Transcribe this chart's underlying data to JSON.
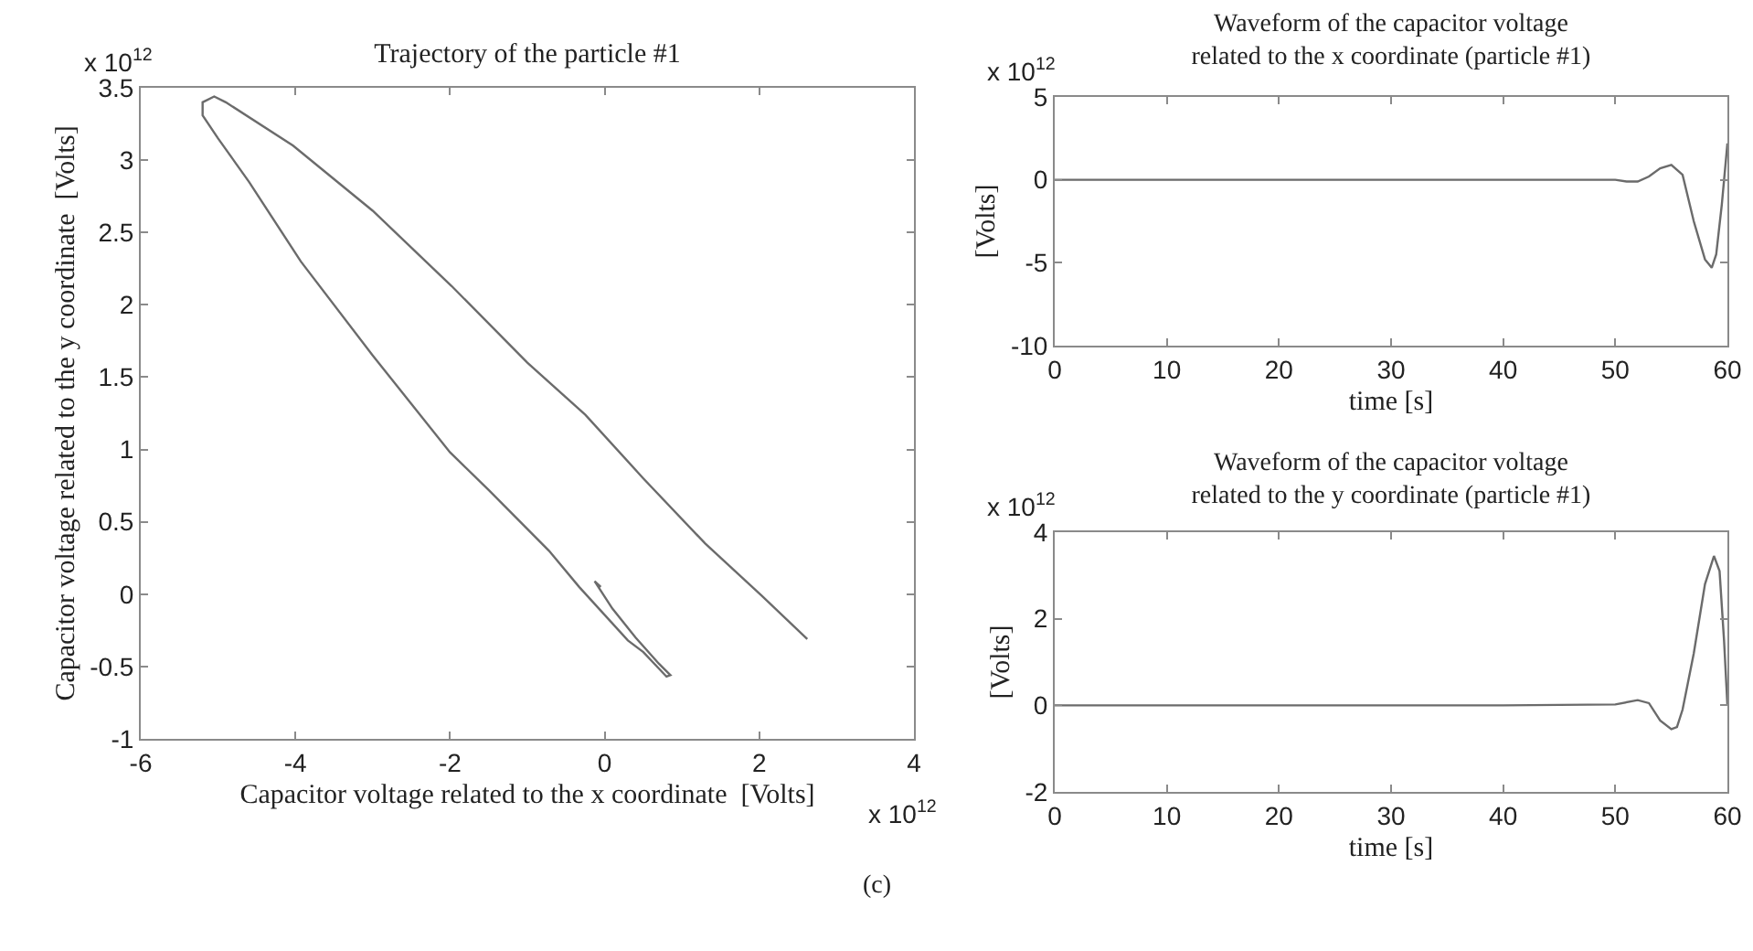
{
  "chart_data": [
    {
      "type": "line",
      "title": "Trajectory of the particle #1",
      "xlabel": "Capacitor voltage related to the x coordinate  [Volts]",
      "ylabel": "Capacitor voltage related to the y coordinate  [Volts]",
      "annotations": [
        "x 10$^{12}$",
        "x 10$^{12}$",
        "(c)"
      ],
      "series": [
        {
          "color": "#6b6b6b",
          "x": [
            -0.05,
            -0.13,
            0.1,
            0.4,
            0.7,
            0.85,
            0.8,
            0.5,
            0.3,
            -0.33,
            -0.72,
            -1.5,
            -2.0,
            -3.0,
            -3.93,
            -4.6,
            -5.0,
            -5.2,
            -5.2,
            -5.05,
            -4.9,
            -4.03,
            -3.0,
            -1.98,
            -1.0,
            -0.25,
            0.5,
            1.3,
            2.03,
            2.62
          ],
          "values": [
            0.05,
            0.09,
            -0.1,
            -0.3,
            -0.48,
            -0.56,
            -0.57,
            -0.4,
            -0.32,
            0.05,
            0.3,
            0.72,
            0.98,
            1.65,
            2.3,
            2.85,
            3.15,
            3.31,
            3.4,
            3.44,
            3.4,
            3.1,
            2.65,
            2.13,
            1.6,
            1.24,
            0.8,
            0.35,
            -0.01,
            -0.31
          ]
        }
      ],
      "xlim": [
        -6,
        4
      ],
      "xticks": [
        -6,
        -4,
        -2,
        0,
        2,
        4
      ],
      "ylim": [
        -1,
        3.5
      ],
      "yticks": [
        -1,
        -0.5,
        0,
        0.5,
        1,
        1.5,
        2,
        2.5,
        3,
        3.5
      ]
    },
    {
      "type": "line",
      "title": "Waveform of the capacitor voltage\nrelated to the x coordinate (particle #1)",
      "xlabel": "time [s]",
      "ylabel": "[Volts]",
      "annotations": [
        "x 10$^{12}$"
      ],
      "series": [
        {
          "color": "#6b6b6b",
          "x": [
            0,
            10,
            20,
            30,
            40,
            50,
            51,
            52,
            53,
            54,
            55,
            56,
            57,
            58,
            58.6,
            59,
            59.5,
            60
          ],
          "values": [
            0,
            0,
            0,
            0,
            0,
            0,
            -0.1,
            -0.1,
            0.2,
            0.7,
            0.9,
            0.3,
            -2.5,
            -4.8,
            -5.3,
            -4.5,
            -1.5,
            2.2
          ]
        }
      ],
      "xlim": [
        0,
        60
      ],
      "xticks": [
        0,
        10,
        20,
        30,
        40,
        50,
        60
      ],
      "ylim": [
        -10,
        5
      ],
      "yticks": [
        -10,
        -5,
        0,
        5
      ]
    },
    {
      "type": "line",
      "title": "Waveform of the capacitor voltage\nrelated to the y coordinate (particle #1)",
      "xlabel": "time [s]",
      "ylabel": "[Volts]",
      "annotations": [
        "x 10$^{12}$"
      ],
      "series": [
        {
          "color": "#6b6b6b",
          "x": [
            0,
            10,
            20,
            30,
            40,
            50,
            52,
            53,
            54,
            55,
            55.5,
            56,
            57,
            58,
            58.8,
            59.3,
            59.7,
            60
          ],
          "values": [
            0,
            0,
            0,
            0,
            0,
            0.02,
            0.12,
            0.05,
            -0.35,
            -0.55,
            -0.5,
            -0.1,
            1.2,
            2.8,
            3.45,
            3.1,
            1.5,
            0
          ]
        }
      ],
      "xlim": [
        0,
        60
      ],
      "xticks": [
        0,
        10,
        20,
        30,
        40,
        50,
        60
      ],
      "ylim": [
        -2,
        4
      ],
      "yticks": [
        -2,
        0,
        2,
        4
      ]
    }
  ]
}
